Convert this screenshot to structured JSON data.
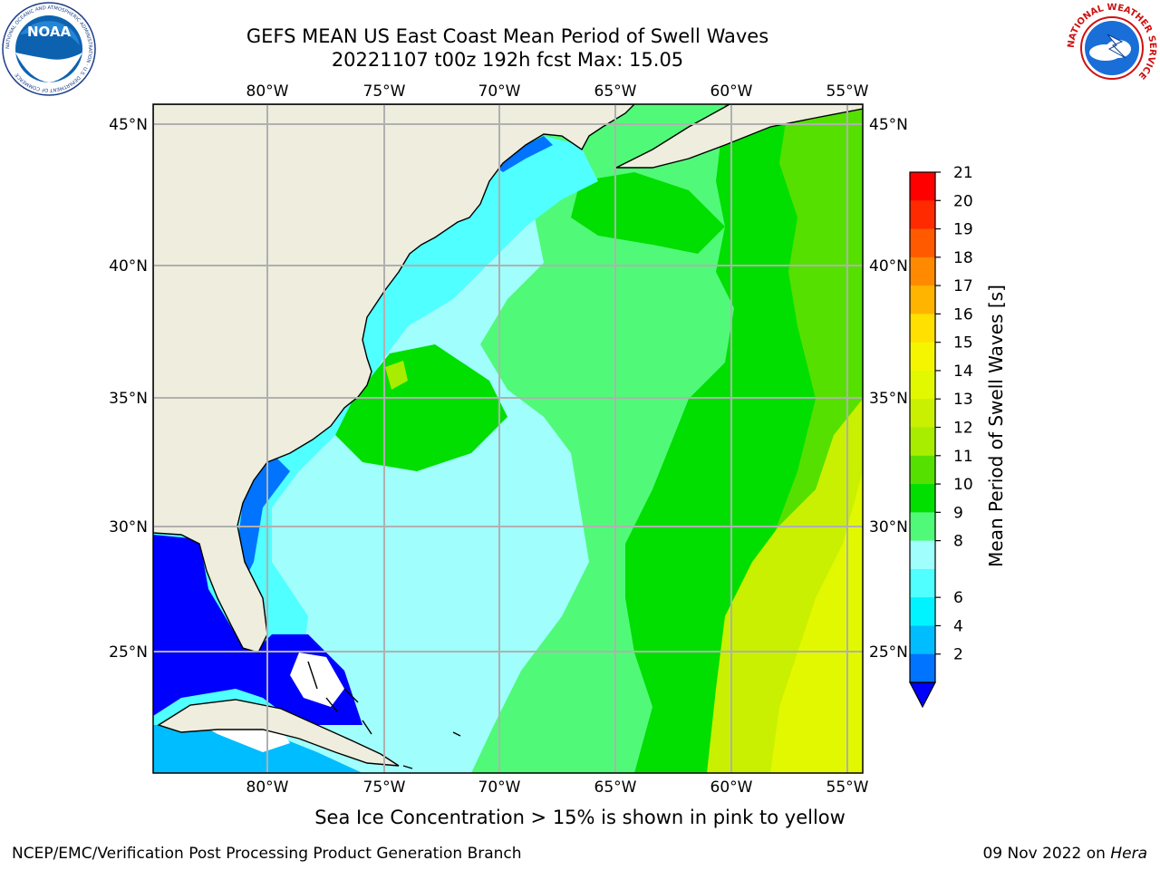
{
  "header": {
    "title_line1": "GEFS MEAN US East Coast Mean Period of Swell Waves",
    "title_line2": "20221107 t00z 192h fcst   Max: 15.05"
  },
  "logos": {
    "left": {
      "icon": "noaa-logo-icon",
      "text": "NOAA",
      "ring_text": "NATIONAL OCEANIC AND ATMOSPHERIC ADMINISTRATION · U.S. DEPARTMENT OF COMMERCE"
    },
    "right": {
      "icon": "nws-logo-icon",
      "ring_text": "NATIONAL WEATHER SERVICE"
    }
  },
  "map": {
    "lon_labels": [
      "80°W",
      "75°W",
      "70°W",
      "65°W",
      "60°W",
      "55°W"
    ],
    "lat_labels": [
      "45°N",
      "40°N",
      "35°N",
      "30°N",
      "25°N"
    ],
    "land_color": "#eeedde",
    "grid_color": "#b0b0b0"
  },
  "colorbar": {
    "title": "Mean Period of Swell Waves [s]",
    "ticks": [
      "21",
      "20",
      "19",
      "18",
      "17",
      "16",
      "15",
      "14",
      "13",
      "12",
      "11",
      "10",
      "9",
      "8",
      "6",
      "4",
      "2"
    ],
    "colors": [
      "#ff0000",
      "#ff2a00",
      "#ff5a00",
      "#ff8a00",
      "#ffb400",
      "#ffe000",
      "#f5f500",
      "#e2f800",
      "#c8f000",
      "#a8ec00",
      "#55e000",
      "#00df00",
      "#50fa78",
      "#a0fffd",
      "#50ffff",
      "#00f4ff",
      "#00bdff",
      "#0073ff"
    ],
    "underflow_color": "#0000ff"
  },
  "note": "Sea Ice Concentration > 15% is shown in pink to yellow",
  "footer": {
    "left": "NCEP/EMC/Verification Post Processing Product Generation Branch",
    "date": "09 Nov 2022 on",
    "host": "Hera"
  }
}
